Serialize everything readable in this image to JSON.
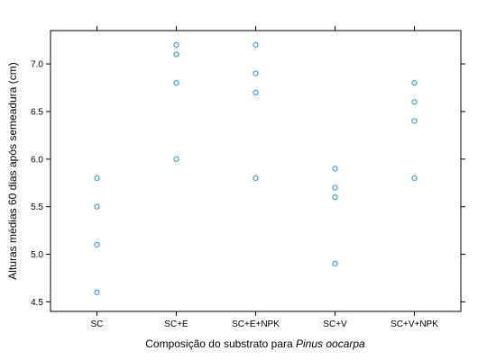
{
  "chart_data": {
    "type": "scatter",
    "title": "",
    "xlabel": {
      "prefix": "Composição do substrato para ",
      "italic": "Pinus oocarpa"
    },
    "ylabel": "Alturas médias 60 dias após semeadura (cm)",
    "categories": [
      "SC",
      "SC+E",
      "SC+E+NPK",
      "SC+V",
      "SC+V+NPK"
    ],
    "ylim": [
      4.4,
      7.35
    ],
    "yticks": [
      "4.5",
      "5.0",
      "5.5",
      "6.0",
      "6.5",
      "7.0"
    ],
    "point_color": "#1f8fe6",
    "points": [
      {
        "category": "SC",
        "y": 5.8
      },
      {
        "category": "SC",
        "y": 5.5
      },
      {
        "category": "SC",
        "y": 5.1
      },
      {
        "category": "SC",
        "y": 4.6
      },
      {
        "category": "SC+E",
        "y": 7.2
      },
      {
        "category": "SC+E",
        "y": 7.1
      },
      {
        "category": "SC+E",
        "y": 6.8
      },
      {
        "category": "SC+E",
        "y": 6.0
      },
      {
        "category": "SC+E+NPK",
        "y": 7.2
      },
      {
        "category": "SC+E+NPK",
        "y": 6.9
      },
      {
        "category": "SC+E+NPK",
        "y": 6.7
      },
      {
        "category": "SC+E+NPK",
        "y": 5.8
      },
      {
        "category": "SC+V",
        "y": 5.9
      },
      {
        "category": "SC+V",
        "y": 5.7
      },
      {
        "category": "SC+V",
        "y": 5.6
      },
      {
        "category": "SC+V",
        "y": 4.9
      },
      {
        "category": "SC+V+NPK",
        "y": 6.8
      },
      {
        "category": "SC+V+NPK",
        "y": 6.6
      },
      {
        "category": "SC+V+NPK",
        "y": 6.4
      },
      {
        "category": "SC+V+NPK",
        "y": 5.8
      }
    ]
  }
}
